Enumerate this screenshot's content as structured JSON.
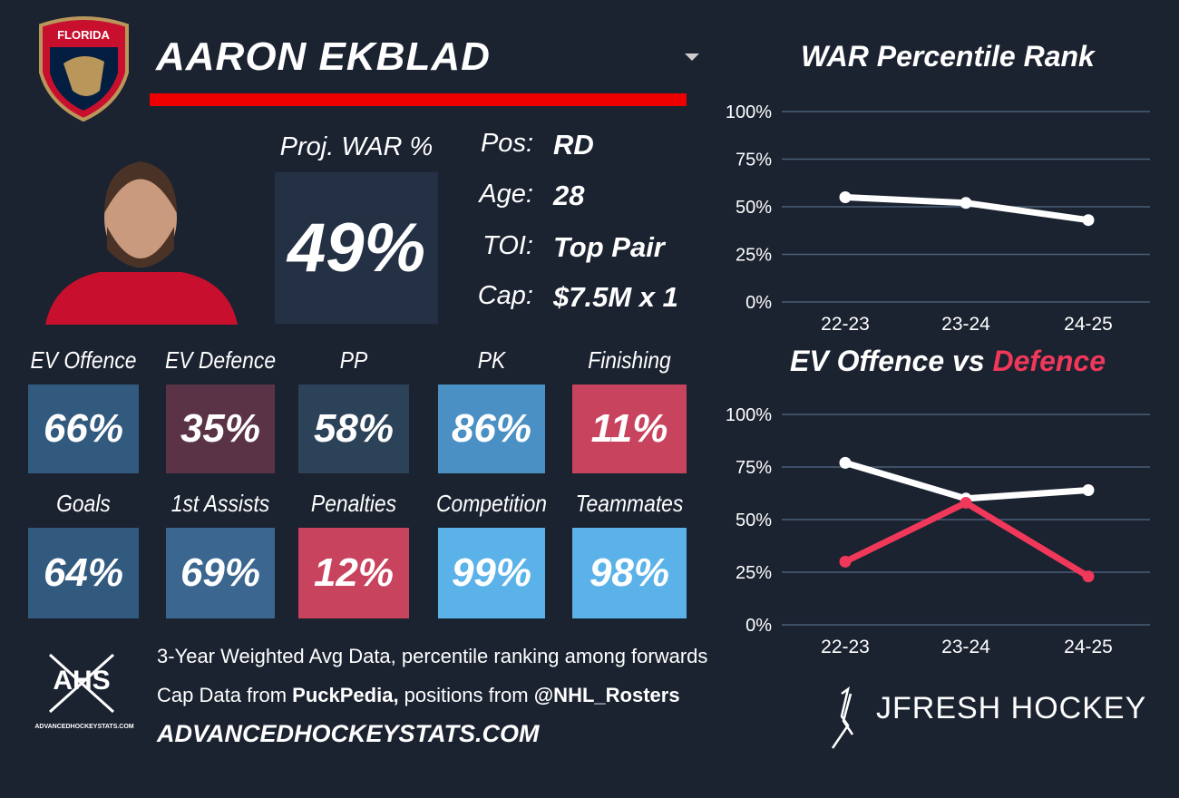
{
  "header": {
    "team_logo_text": "FLORIDA",
    "player_name": "AARON EKBLAD"
  },
  "proj_war": {
    "label": "Proj. WAR %",
    "value": "49%"
  },
  "info": [
    {
      "label": "Pos:",
      "value": "RD"
    },
    {
      "label": "Age:",
      "value": "28"
    },
    {
      "label": "TOI:",
      "value": "Top Pair"
    },
    {
      "label": "Cap:",
      "value": "$7.5M x 1"
    }
  ],
  "tiles": [
    {
      "label": "EV Offence",
      "value": "66%",
      "color": "#325a7e"
    },
    {
      "label": "EV Defence",
      "value": "35%",
      "color": "#5a3346"
    },
    {
      "label": "PP",
      "value": "58%",
      "color": "#2b4259"
    },
    {
      "label": "PK",
      "value": "86%",
      "color": "#4a90c4"
    },
    {
      "label": "Finishing",
      "value": "11%",
      "color": "#c8435d"
    },
    {
      "label": "Goals",
      "value": "64%",
      "color": "#325a7e"
    },
    {
      "label": "1st Assists",
      "value": "69%",
      "color": "#3a6690"
    },
    {
      "label": "Penalties",
      "value": "12%",
      "color": "#c8435d"
    },
    {
      "label": "Competition",
      "value": "99%",
      "color": "#5ab2e8"
    },
    {
      "label": "Teammates",
      "value": "98%",
      "color": "#5ab2e8"
    }
  ],
  "footer": {
    "logo_text": "AHS",
    "logo_subtext": "ADVANCEDHOCKEYSTATS.COM",
    "line1": "3-Year Weighted Avg Data, percentile ranking among forwards",
    "line2": [
      "Cap Data from ",
      "PuckPedia,",
      " positions from ",
      "@NHL_Rosters"
    ],
    "site": "ADVANCEDHOCKEYSTATS.COM",
    "brand": "JFRESH HOCKEY"
  },
  "chart_data": [
    {
      "type": "line",
      "title": "WAR Percentile Rank",
      "categories": [
        "22-23",
        "23-24",
        "24-25"
      ],
      "series": [
        {
          "color": "#ffffff",
          "values": [
            55,
            52,
            43
          ]
        }
      ],
      "ylim": [
        0,
        100
      ],
      "yticks": [
        {
          "value": 0,
          "label": "0%"
        },
        {
          "value": 25,
          "label": "25%"
        },
        {
          "value": 50,
          "label": "50%"
        },
        {
          "value": 75,
          "label": "75%"
        },
        {
          "value": 100,
          "label": "100%"
        }
      ],
      "grid": true
    },
    {
      "type": "line",
      "title": "EV Offence vs",
      "title_highlight": "Defence",
      "categories": [
        "22-23",
        "23-24",
        "24-25"
      ],
      "series": [
        {
          "color": "#ffffff",
          "values": [
            77,
            60,
            64
          ]
        },
        {
          "color": "#f0385a",
          "values": [
            30,
            58,
            23
          ]
        }
      ],
      "ylim": [
        0,
        100
      ],
      "yticks": [
        {
          "value": 0,
          "label": "0%"
        },
        {
          "value": 25,
          "label": "25%"
        },
        {
          "value": 50,
          "label": "50%"
        },
        {
          "value": 75,
          "label": "75%"
        },
        {
          "value": 100,
          "label": "100%"
        }
      ],
      "grid": true
    }
  ]
}
